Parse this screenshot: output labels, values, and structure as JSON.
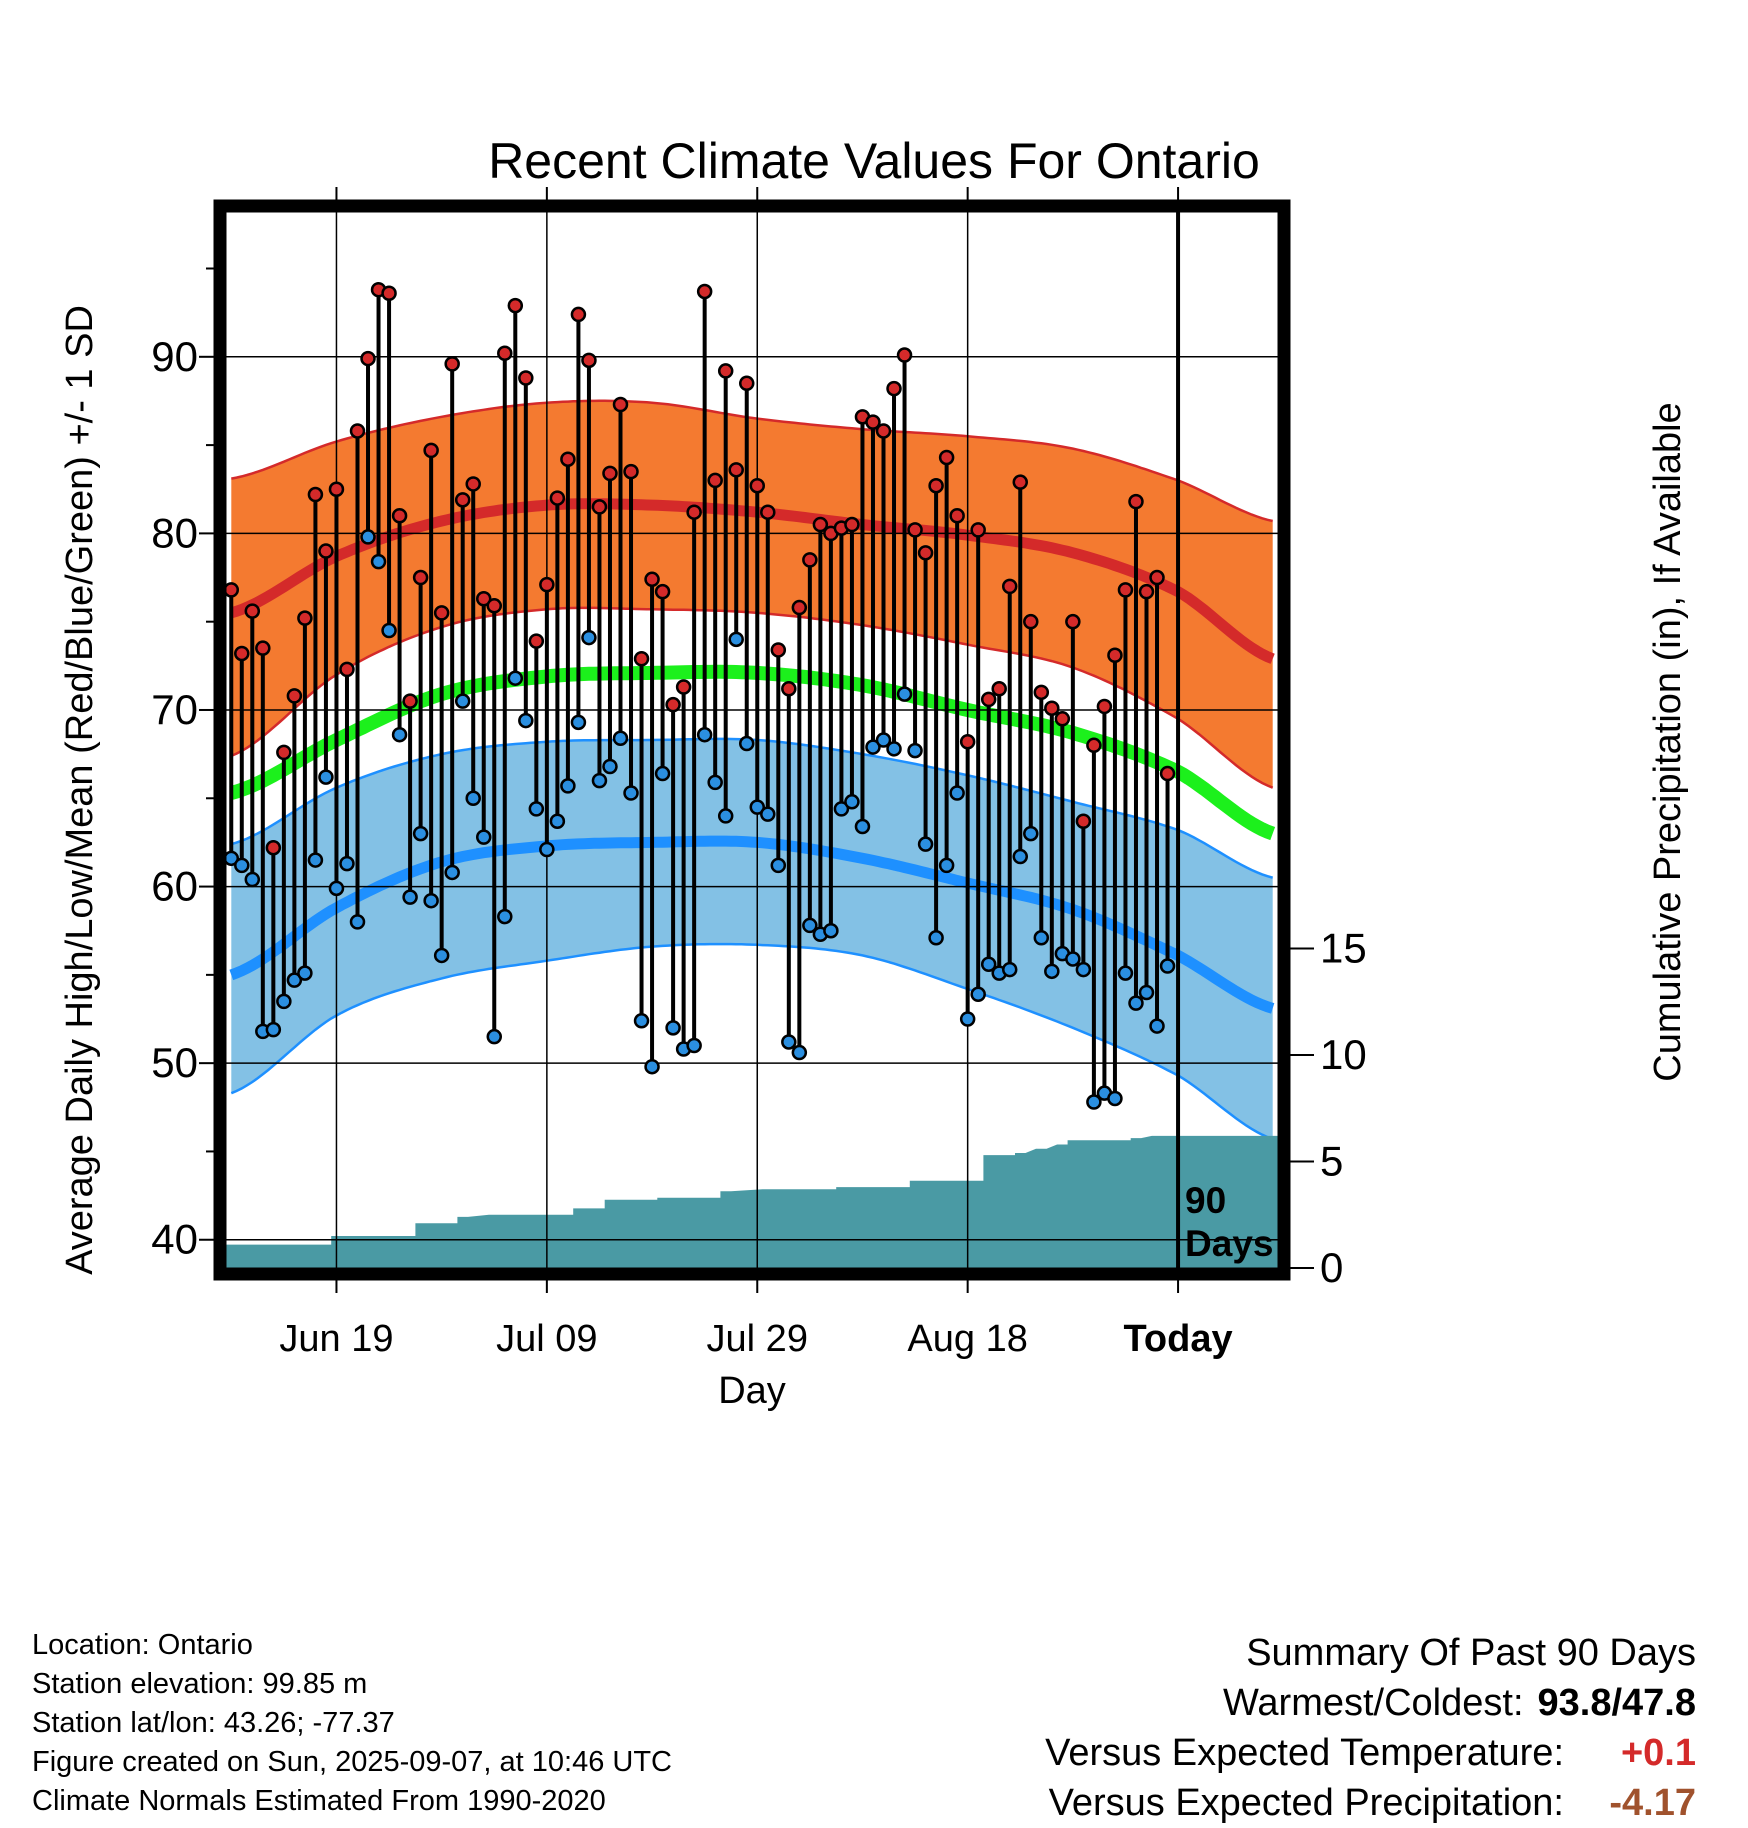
{
  "chart_data": {
    "type": "line",
    "title": "Recent Climate Values For Ontario",
    "xlabel": "Day",
    "ylabel": "Average Daily High/Low/Mean (Red/Blue/Green) +/- 1 SD",
    "y2label": "Cumulative Precipitation (in), If Available",
    "x_tick_labels": [
      "Jun 19",
      "Jul 09",
      "Jul 29",
      "Aug 18",
      "Today"
    ],
    "x_tick_days": [
      10,
      30,
      50,
      70,
      90
    ],
    "x_range": [
      -0.5,
      99.5
    ],
    "y_ticks": [
      40,
      50,
      60,
      70,
      80,
      90
    ],
    "ylim": [
      38.4,
      98.2
    ],
    "y2_ticks": [
      0,
      5,
      10,
      15
    ],
    "annotation": "90\nDays",
    "grid": true,
    "colors": {
      "high_band": "#f47a30",
      "high_line": "#d42a2a",
      "low_band": "#83c1e5",
      "low_line": "#1e90ff",
      "mean_line": "#1cf01c",
      "precip": "#4a9aa4",
      "high_marker": "#d42a2a",
      "low_marker": "#2b8fe0"
    },
    "normals": {
      "x": [
        0,
        10,
        20,
        30,
        40,
        50,
        60,
        70,
        80,
        90,
        99
      ],
      "high_mean": [
        75.5,
        78.7,
        80.7,
        81.6,
        81.6,
        81.2,
        80.5,
        79.9,
        78.9,
        76.7,
        72.9
      ],
      "high_plus_sd": [
        83.1,
        85.2,
        86.6,
        87.4,
        87.4,
        86.5,
        85.9,
        85.5,
        84.8,
        83.0,
        80.7
      ],
      "high_minus_sd": [
        67.4,
        72.0,
        74.7,
        75.7,
        75.7,
        75.5,
        74.8,
        73.7,
        72.4,
        69.5,
        65.6
      ],
      "mean": [
        65.3,
        68.3,
        70.9,
        71.9,
        72.1,
        72.1,
        71.4,
        70.0,
        68.7,
        66.5,
        63.0
      ],
      "low_mean": [
        55.0,
        58.8,
        61.4,
        62.3,
        62.5,
        62.5,
        61.6,
        60.2,
        58.7,
        56.1,
        53.1
      ],
      "low_plus_sd": [
        62.4,
        65.6,
        67.5,
        68.2,
        68.3,
        68.3,
        67.5,
        66.3,
        64.8,
        63.2,
        60.5
      ],
      "low_minus_sd": [
        48.3,
        52.7,
        54.8,
        55.8,
        56.6,
        56.7,
        56.1,
        54.2,
        52.0,
        49.3,
        45.7
      ]
    },
    "daily_high": [
      76.8,
      73.2,
      75.6,
      73.5,
      62.2,
      67.6,
      70.8,
      75.2,
      82.2,
      79.0,
      82.5,
      72.3,
      85.8,
      89.9,
      93.8,
      93.6,
      81.0,
      70.5,
      77.5,
      84.7,
      75.5,
      89.6,
      81.9,
      82.8,
      76.3,
      75.9,
      90.2,
      92.9,
      88.8,
      73.9,
      77.1,
      82.0,
      84.2,
      92.4,
      89.8,
      81.5,
      83.4,
      87.3,
      83.5,
      72.9,
      77.4,
      76.7,
      70.3,
      71.3,
      81.2,
      93.7,
      83.0,
      89.2,
      83.6,
      88.5,
      82.7,
      81.2,
      73.4,
      71.2,
      75.8,
      78.5,
      80.5,
      80.0,
      80.3,
      80.5,
      86.6,
      86.3,
      85.8,
      88.2,
      90.1,
      80.2,
      78.9,
      82.7,
      84.3,
      81.0,
      68.2,
      80.2,
      70.6,
      71.2,
      77.0,
      82.9,
      75.0,
      71.0,
      70.1,
      69.5,
      75.0,
      63.7,
      68.0,
      70.2,
      73.1,
      76.8,
      81.8,
      76.7,
      77.5,
      66.4
    ],
    "daily_low": [
      61.6,
      61.2,
      60.4,
      51.8,
      51.9,
      53.5,
      54.7,
      55.1,
      61.5,
      66.2,
      59.9,
      61.3,
      58.0,
      79.8,
      78.4,
      74.5,
      68.6,
      59.4,
      63.0,
      59.2,
      56.1,
      60.8,
      70.5,
      65.0,
      62.8,
      51.5,
      58.3,
      71.8,
      69.4,
      64.4,
      62.1,
      63.7,
      65.7,
      69.3,
      74.1,
      66.0,
      66.8,
      68.4,
      65.3,
      52.4,
      49.8,
      66.4,
      52.0,
      50.8,
      51.0,
      68.6,
      65.9,
      64.0,
      74.0,
      68.1,
      64.5,
      64.1,
      61.2,
      51.2,
      50.6,
      57.8,
      57.3,
      57.5,
      64.4,
      64.8,
      63.4,
      67.9,
      68.3,
      67.8,
      70.9,
      67.7,
      62.4,
      57.1,
      61.2,
      65.3,
      52.5,
      53.9,
      55.6,
      55.1,
      55.3,
      61.7,
      63.0,
      57.1,
      55.2,
      56.2,
      55.9,
      55.3,
      47.8,
      48.3,
      48.0,
      55.1,
      53.4,
      54.0,
      52.1,
      55.5
    ],
    "cumulative_precip": [
      [
        0,
        1.1
      ],
      [
        9,
        1.1
      ],
      [
        10,
        1.5
      ],
      [
        17,
        1.5
      ],
      [
        18,
        2.1
      ],
      [
        21,
        2.1
      ],
      [
        22,
        2.4
      ],
      [
        25,
        2.5
      ],
      [
        32,
        2.5
      ],
      [
        33,
        2.8
      ],
      [
        35,
        2.8
      ],
      [
        36,
        3.2
      ],
      [
        40,
        3.2
      ],
      [
        41,
        3.3
      ],
      [
        46,
        3.3
      ],
      [
        47,
        3.6
      ],
      [
        51,
        3.7
      ],
      [
        57,
        3.7
      ],
      [
        58,
        3.8
      ],
      [
        64,
        3.8
      ],
      [
        65,
        4.1
      ],
      [
        71,
        4.1
      ],
      [
        72,
        5.3
      ],
      [
        74,
        5.3
      ],
      [
        75,
        5.4
      ],
      [
        77,
        5.6
      ],
      [
        79,
        5.8
      ],
      [
        80,
        6.0
      ],
      [
        85,
        6.0
      ],
      [
        86,
        6.1
      ],
      [
        88,
        6.2
      ],
      [
        99,
        6.2
      ]
    ]
  },
  "info": {
    "location": "Location: Ontario",
    "elevation": "Station elevation: 99.85 m",
    "latlon": "Station lat/lon: 43.26; -77.37",
    "created": "Figure created on Sun, 2025-09-07, at 10:46 UTC",
    "normals": "Climate Normals Estimated From 1990-2020"
  },
  "summary": {
    "title": "Summary Of Past 90 Days",
    "warm_cold_label": "Warmest/Coldest:",
    "warm_cold_value": "93.8/47.8",
    "temp_label": "Versus Expected Temperature:",
    "temp_value": "+0.1",
    "temp_color": "#d42a2a",
    "precip_label": "Versus Expected Precipitation:",
    "precip_value": "-4.17",
    "precip_color": "#a0522d"
  }
}
